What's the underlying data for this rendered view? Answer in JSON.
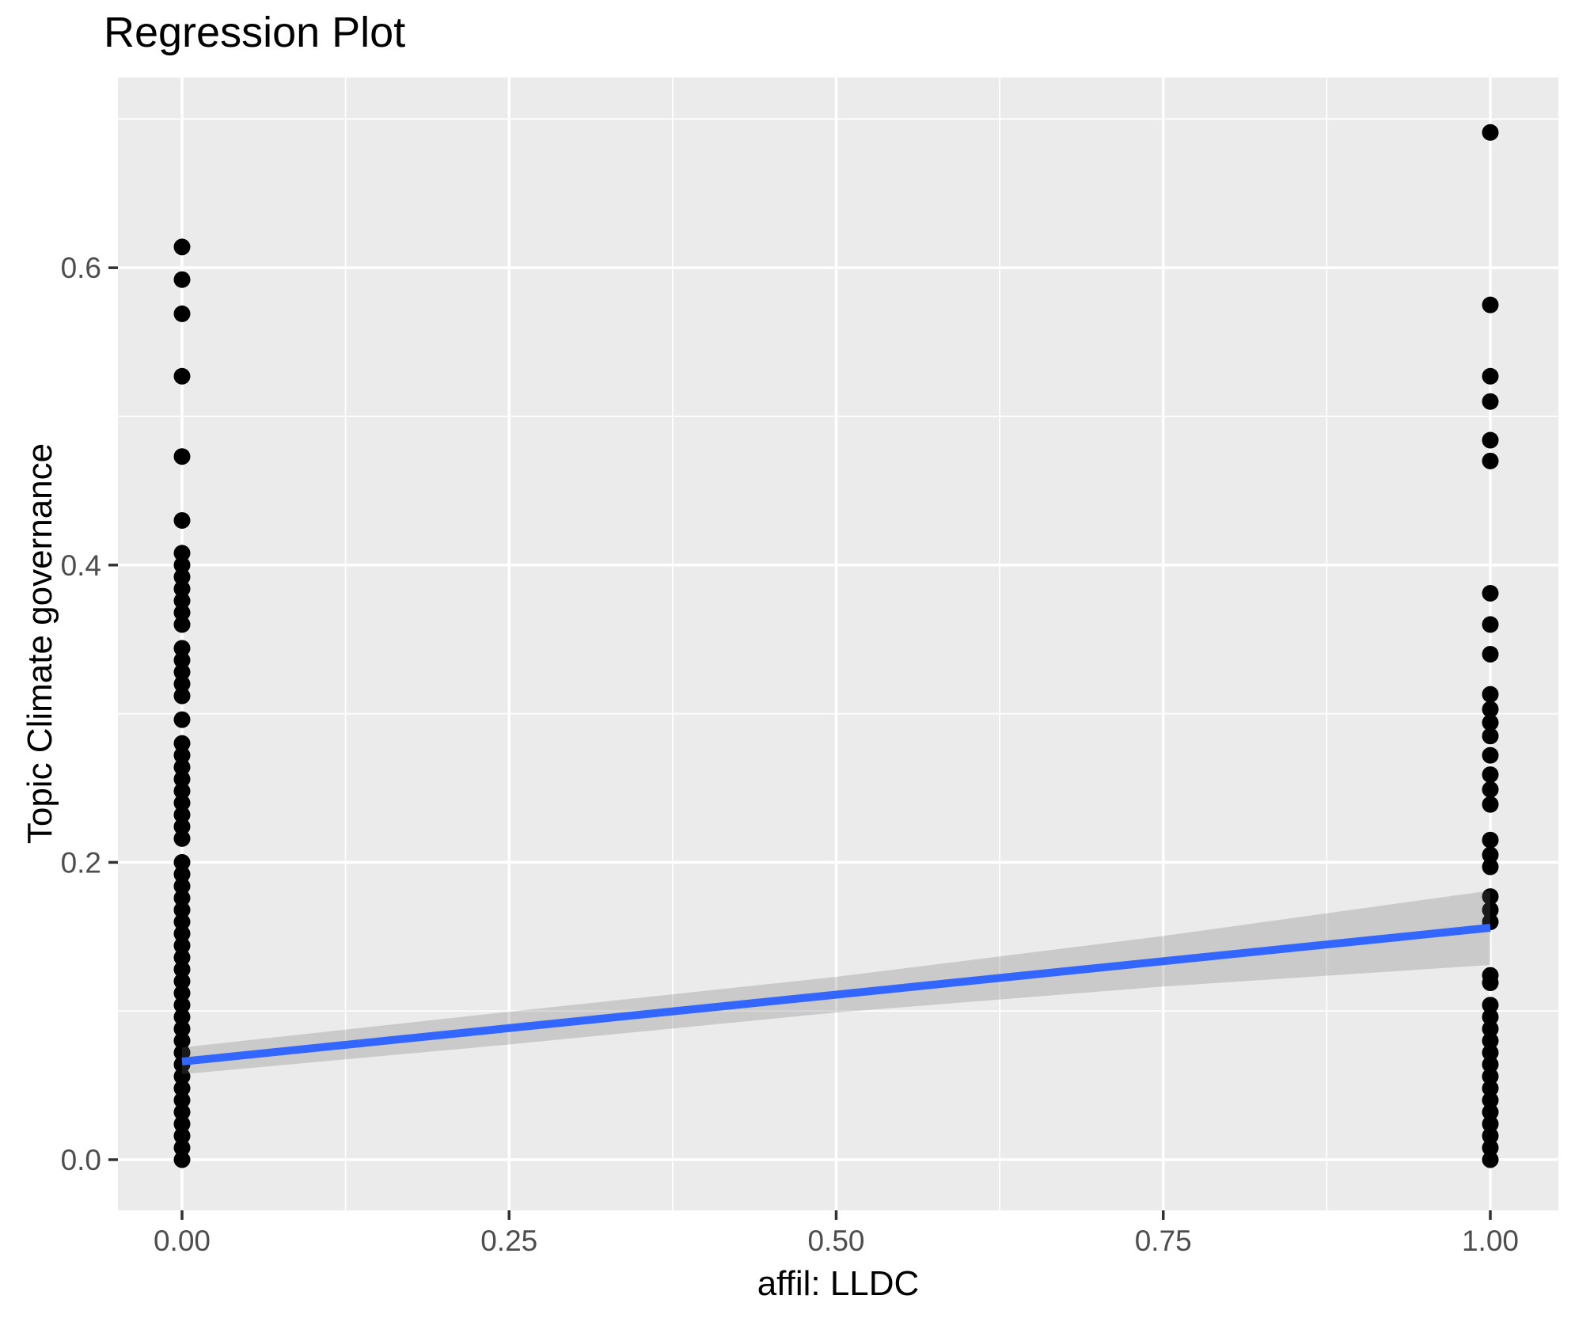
{
  "chart_data": {
    "type": "scatter",
    "title": "Regression Plot",
    "xlabel": "affil: LLDC",
    "ylabel": "Topic Climate governance",
    "xlim": [
      -0.049,
      1.052
    ],
    "ylim": [
      -0.034,
      0.728
    ],
    "grid": "on",
    "legend": "none",
    "x_ticks": [
      0,
      0.25,
      0.5,
      0.75,
      1
    ],
    "x_tick_labels": [
      "0.00",
      "0.25",
      "0.50",
      "0.75",
      "1.00"
    ],
    "x_minor_ticks": [
      0.125,
      0.375,
      0.625,
      0.875
    ],
    "y_ticks": [
      0,
      0.2,
      0.4,
      0.6
    ],
    "y_tick_labels": [
      "0.0",
      "0.2",
      "0.4",
      "0.6"
    ],
    "y_minor_ticks": [
      0.1,
      0.3,
      0.5,
      0.7
    ],
    "series": [
      {
        "name": "affil LLDC = 0",
        "x": 0,
        "y": [
          0.614,
          0.592,
          0.569,
          0.527,
          0.473,
          0.43,
          0.408,
          0.4,
          0.392,
          0.384,
          0.376,
          0.368,
          0.36,
          0.344,
          0.336,
          0.328,
          0.32,
          0.312,
          0.296,
          0.28,
          0.272,
          0.264,
          0.256,
          0.248,
          0.24,
          0.232,
          0.224,
          0.216,
          0.2,
          0.192,
          0.184,
          0.176,
          0.168,
          0.16,
          0.152,
          0.144,
          0.136,
          0.128,
          0.12,
          0.112,
          0.104,
          0.096,
          0.088,
          0.08,
          0.072,
          0.064,
          0.056,
          0.048,
          0.04,
          0.032,
          0.024,
          0.016,
          0.008,
          0.0
        ]
      },
      {
        "name": "affil LLDC = 1",
        "x": 1,
        "y": [
          0.691,
          0.575,
          0.527,
          0.51,
          0.484,
          0.47,
          0.381,
          0.36,
          0.34,
          0.313,
          0.303,
          0.294,
          0.285,
          0.272,
          0.259,
          0.249,
          0.239,
          0.215,
          0.205,
          0.197,
          0.177,
          0.168,
          0.16,
          0.124,
          0.119,
          0.104,
          0.096,
          0.088,
          0.08,
          0.072,
          0.064,
          0.056,
          0.048,
          0.04,
          0.032,
          0.024,
          0.016,
          0.008,
          0.0
        ]
      }
    ],
    "regression_line": {
      "x": [
        0,
        1
      ],
      "y": [
        0.066,
        0.156
      ]
    },
    "ci_band": {
      "x": [
        0,
        0.25,
        0.5,
        0.75,
        1
      ],
      "upper": [
        0.0755,
        0.0995,
        0.123,
        0.1505,
        0.181
      ],
      "lower": [
        0.0575,
        0.0775,
        0.099,
        0.1165,
        0.131
      ]
    },
    "colors": {
      "background": "#FFFFFF",
      "panel_background": "#EBEBEB",
      "gridline": "#FFFFFF",
      "point": "#000000",
      "regression_line": "#3366FF",
      "ci_band": "rgba(102,102,102,0.25)",
      "tick_label": "#4D4D4D",
      "tick_mark": "#333333",
      "title_text": "#000000"
    }
  }
}
